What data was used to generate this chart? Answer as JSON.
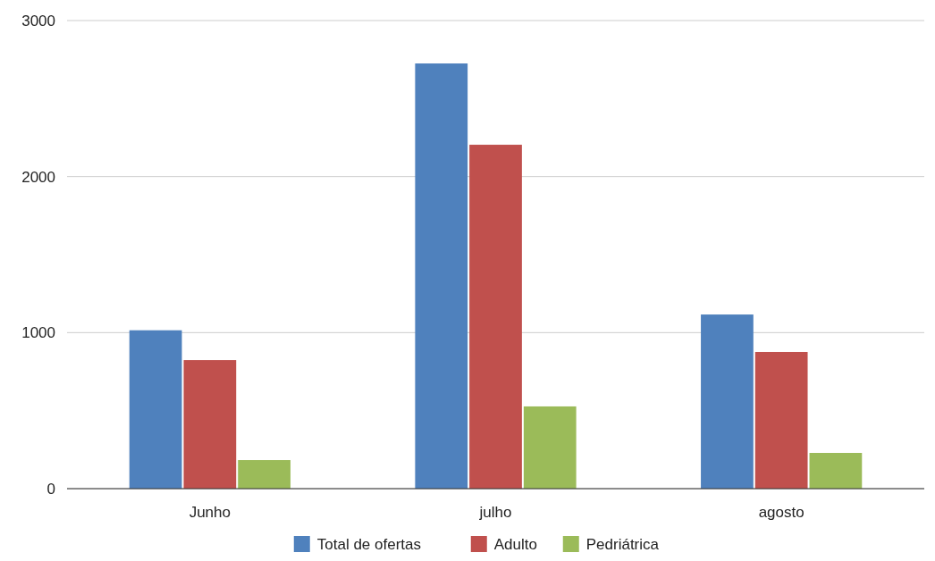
{
  "chart_data": {
    "type": "bar",
    "categories": [
      "Junho",
      "julho",
      "agosto"
    ],
    "series": [
      {
        "name": "Total de ofertas",
        "color": "#4f81bd",
        "values": [
          1015,
          2725,
          1116
        ]
      },
      {
        "name": "Adulto",
        "color": "#c0504d",
        "values": [
          824,
          2204,
          876
        ]
      },
      {
        "name": "Pedriátrica",
        "color": "#9bbb59",
        "values": [
          183,
          527,
          229
        ]
      }
    ],
    "ylim": [
      0,
      3000
    ],
    "yticks": [
      0,
      1000,
      2000,
      3000
    ],
    "grid": "y",
    "legend": "bottom"
  }
}
